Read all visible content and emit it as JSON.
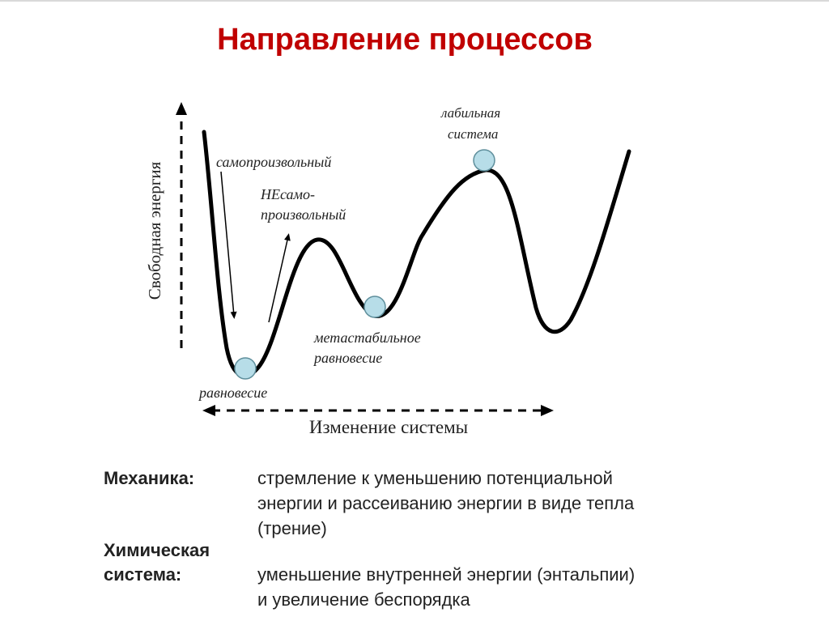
{
  "title": "Направление процессов",
  "colors": {
    "title": "#c00000",
    "curve": "#000000",
    "ball": "#b7dde8"
  },
  "diagram": {
    "y_axis_label": "Свободная энергия",
    "x_axis_label": "Изменение системы",
    "labels": {
      "spontaneous": "самопроизвольный",
      "nonspontaneous_1": "НЕсамо-",
      "nonspontaneous_2": "произвольный",
      "labile_1": "лабильная",
      "labile_2": "система",
      "metastable_1": "метастабильное",
      "metastable_2": "равновесие",
      "equilibrium": "равновесие"
    }
  },
  "notes": {
    "mechanics_term": "Механика:",
    "mechanics_line1": "стремление к уменьшению потенциальной",
    "mechanics_line2": "энергии и рассеиванию энергии в виде тепла",
    "mechanics_line3": "(трение)",
    "chem_term1": "Химическая",
    "chem_term2": "система:",
    "chem_line1": "уменьшение внутренней энергии (энтальпии)",
    "chem_line2": "и увеличение беспорядка"
  }
}
